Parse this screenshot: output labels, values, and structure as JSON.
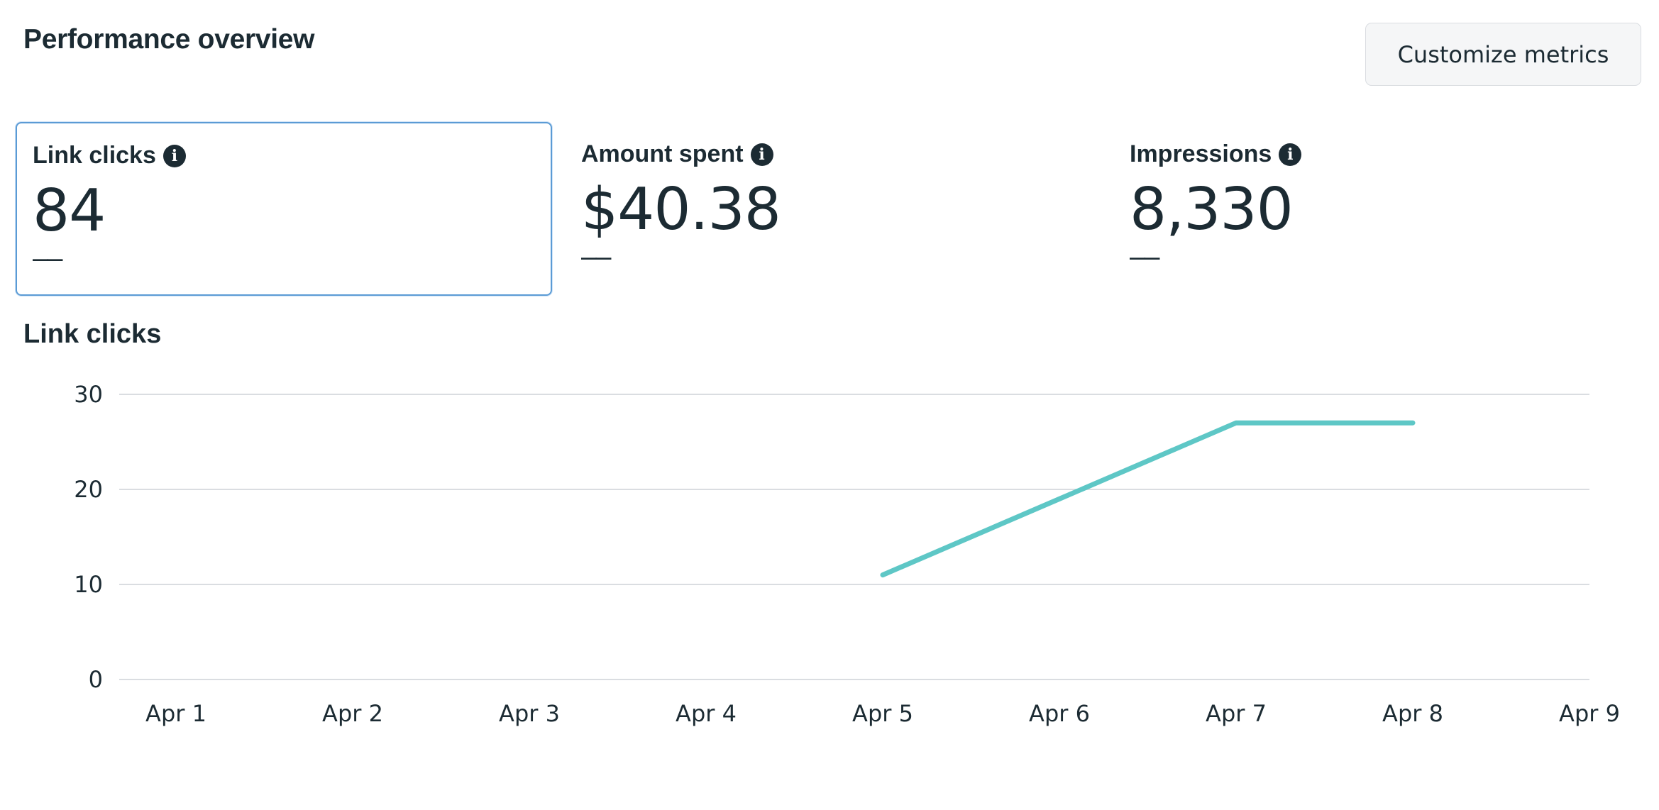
{
  "header": {
    "title": "Performance overview",
    "customize_label": "Customize metrics"
  },
  "metrics": [
    {
      "label": "Link clicks",
      "value": "84",
      "delta": "––",
      "selected": true
    },
    {
      "label": "Amount spent",
      "value": "$40.38",
      "delta": "––",
      "selected": false
    },
    {
      "label": "Impressions",
      "value": "8,330",
      "delta": "––",
      "selected": false
    }
  ],
  "chart_title": "Link clicks",
  "chart_data": {
    "type": "line",
    "categories": [
      "Apr 1",
      "Apr 2",
      "Apr 3",
      "Apr 4",
      "Apr 5",
      "Apr 6",
      "Apr 7",
      "Apr 8",
      "Apr 9"
    ],
    "series": [
      {
        "values": [
          null,
          null,
          null,
          null,
          11,
          19,
          27,
          27,
          null
        ],
        "color": "#5ec7c6"
      }
    ],
    "yticks": [
      0,
      10,
      20,
      30
    ],
    "ylim": [
      0,
      30
    ],
    "grid": true
  },
  "icons": {
    "info": "info-icon"
  }
}
